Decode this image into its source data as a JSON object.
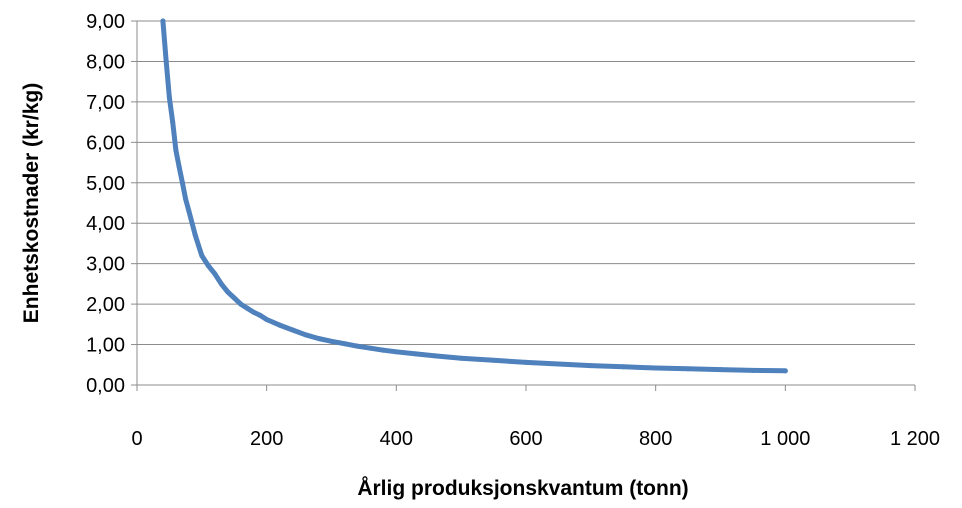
{
  "chart_data": {
    "type": "line",
    "title": "",
    "xlabel": "Årlig produksjonskvantum  (tonn)",
    "ylabel": "Enhetskostnader (kr/kg)",
    "xlim": [
      0,
      1200
    ],
    "ylim": [
      0,
      9
    ],
    "x_ticks": [
      0,
      200,
      400,
      600,
      800,
      1000,
      1200
    ],
    "x_tick_labels": [
      "0",
      "200",
      "400",
      "600",
      "800",
      "1 000",
      "1 200"
    ],
    "y_ticks": [
      0,
      1,
      2,
      3,
      4,
      5,
      6,
      7,
      8,
      9
    ],
    "y_tick_labels": [
      "0,00",
      "1,00",
      "2,00",
      "3,00",
      "4,00",
      "5,00",
      "6,00",
      "7,00",
      "8,00",
      "9,00"
    ],
    "grid": "horizontal",
    "legend": "none",
    "series": [
      {
        "color": "#4F81BD",
        "x": [
          40,
          45,
          50,
          55,
          60,
          65,
          70,
          75,
          80,
          90,
          100,
          110,
          120,
          130,
          140,
          150,
          160,
          170,
          180,
          190,
          200,
          220,
          240,
          260,
          280,
          300,
          320,
          340,
          360,
          380,
          400,
          430,
          460,
          500,
          550,
          600,
          650,
          700,
          750,
          800,
          850,
          900,
          950,
          1000
        ],
        "y": [
          9.0,
          8.0,
          7.1,
          6.5,
          5.8,
          5.4,
          5.0,
          4.6,
          4.3,
          3.7,
          3.2,
          2.95,
          2.75,
          2.5,
          2.3,
          2.15,
          2.0,
          1.9,
          1.8,
          1.72,
          1.62,
          1.48,
          1.36,
          1.24,
          1.15,
          1.08,
          1.02,
          0.96,
          0.91,
          0.86,
          0.82,
          0.77,
          0.72,
          0.66,
          0.61,
          0.56,
          0.52,
          0.48,
          0.45,
          0.42,
          0.4,
          0.38,
          0.36,
          0.35
        ]
      }
    ]
  }
}
